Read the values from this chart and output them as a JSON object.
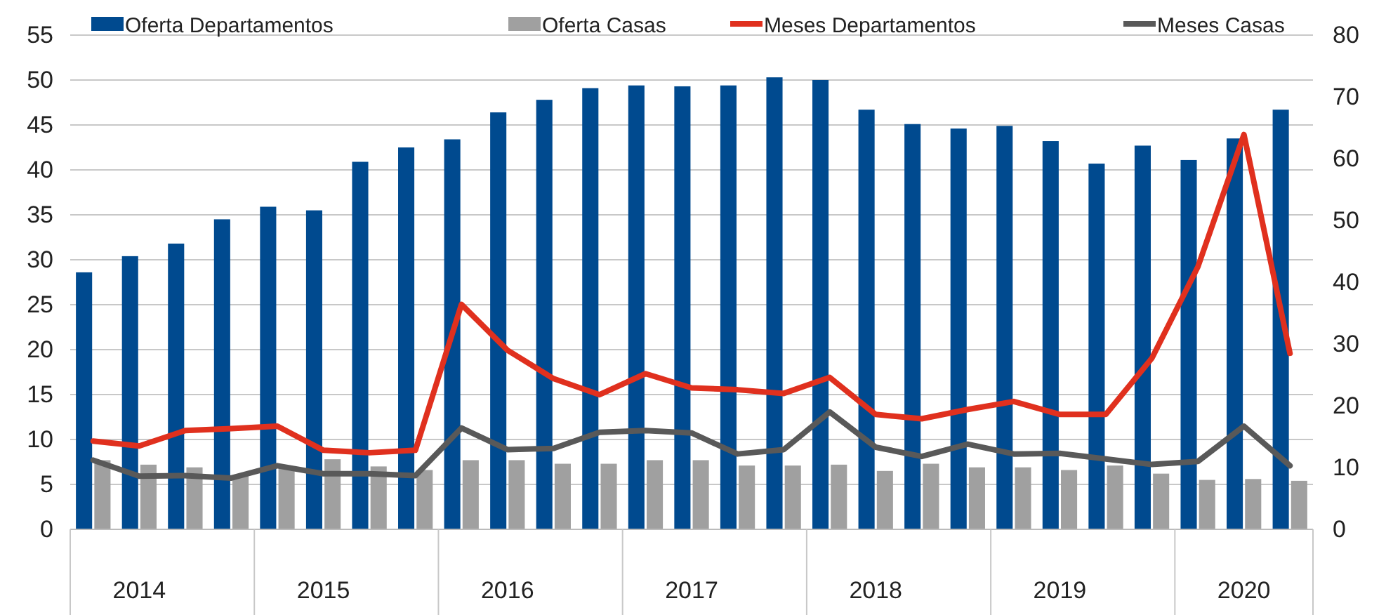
{
  "chart_data": {
    "type": "bar",
    "categories": [
      null,
      "2014",
      null,
      null,
      null,
      "2015",
      null,
      null,
      null,
      "2016",
      null,
      null,
      null,
      "2017",
      null,
      null,
      null,
      "2018",
      null,
      null,
      null,
      "2019",
      null,
      null,
      null,
      "2020",
      null
    ],
    "series": [
      {
        "name": "Oferta Departamentos",
        "color": "#004a8f",
        "values": [
          28.6,
          30.4,
          31.8,
          34.5,
          35.9,
          35.5,
          40.9,
          42.5,
          43.4,
          46.4,
          47.8,
          49.1,
          49.4,
          49.3,
          49.4,
          50.3,
          50.0,
          46.7,
          45.1,
          44.6,
          44.9,
          43.2,
          40.7,
          42.7,
          41.1,
          43.5,
          46.7
        ]
      },
      {
        "name": "Oferta Casas",
        "color": "#a0a0a0",
        "values": [
          7.7,
          7.2,
          6.9,
          6.0,
          6.8,
          7.8,
          7.0,
          6.6,
          7.7,
          7.7,
          7.3,
          7.3,
          7.7,
          7.7,
          7.1,
          7.1,
          7.2,
          6.5,
          7.3,
          6.9,
          6.9,
          6.6,
          7.1,
          6.2,
          5.5,
          5.6,
          5.4
        ]
      },
      {
        "name": "Meses Departamentos",
        "type": "line",
        "axis": "y2",
        "color": "#e0301e",
        "values": [
          14.3,
          13.5,
          16.0,
          16.3,
          16.7,
          12.8,
          12.4,
          12.8,
          36.4,
          29.0,
          24.4,
          21.8,
          25.2,
          22.9,
          22.6,
          22.0,
          24.6,
          18.6,
          17.9,
          19.4,
          20.7,
          18.6,
          18.6,
          27.7,
          42.5,
          63.9,
          28.5
        ]
      },
      {
        "name": "Meses Casas",
        "type": "line",
        "axis": "y2",
        "color": "#595959",
        "values": [
          11.2,
          8.6,
          8.7,
          8.3,
          10.3,
          9.0,
          9.0,
          8.7,
          16.4,
          12.9,
          13.1,
          15.7,
          16.0,
          15.6,
          12.2,
          12.9,
          19.0,
          13.3,
          11.8,
          13.8,
          12.2,
          12.3,
          11.4,
          10.5,
          11.0,
          16.7,
          10.3
        ]
      }
    ],
    "ylim": [
      0,
      55
    ],
    "yticks": [
      0,
      5,
      10,
      15,
      20,
      25,
      30,
      35,
      40,
      45,
      50,
      55
    ],
    "y2lim": [
      0,
      80
    ],
    "y2ticks": [
      0,
      10,
      20,
      30,
      40,
      50,
      60,
      70,
      80
    ],
    "grid": "y",
    "legend": "top",
    "line_style": "solid",
    "marker": "none"
  }
}
